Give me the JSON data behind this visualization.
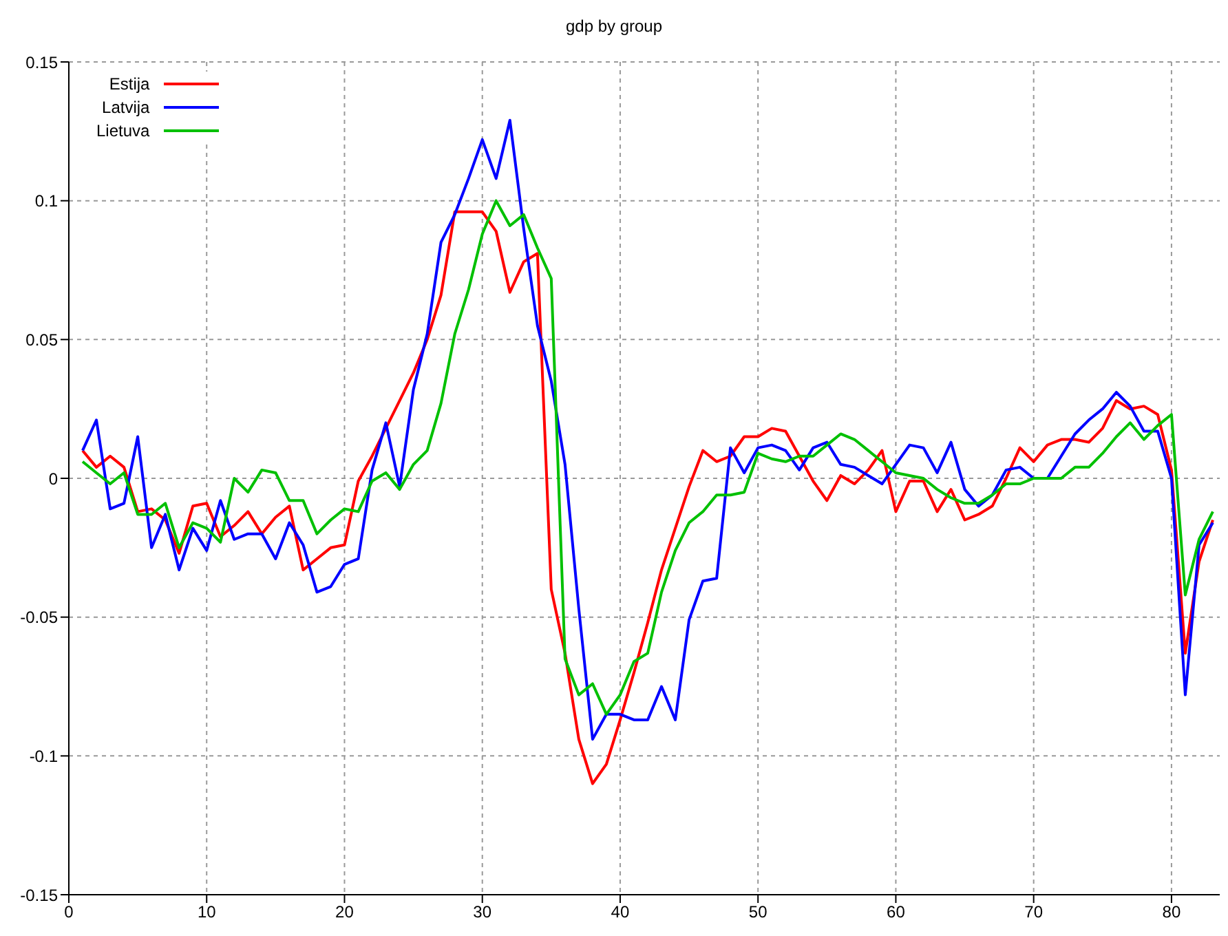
{
  "chart_data": {
    "type": "line",
    "title": "gdp by group",
    "x": [
      1,
      2,
      3,
      4,
      5,
      6,
      7,
      8,
      9,
      10,
      11,
      12,
      13,
      14,
      15,
      16,
      17,
      18,
      19,
      20,
      21,
      22,
      23,
      24,
      25,
      26,
      27,
      28,
      29,
      30,
      31,
      32,
      33,
      34,
      35,
      36,
      37,
      38,
      39,
      40,
      41,
      42,
      43,
      44,
      45,
      46,
      47,
      48,
      49,
      50,
      51,
      52,
      53,
      54,
      55,
      56,
      57,
      58,
      59,
      60,
      61,
      62,
      63,
      64,
      65,
      66,
      67,
      68,
      69,
      70,
      71,
      72,
      73,
      74,
      75,
      76,
      77,
      78,
      79,
      80,
      81,
      82,
      83
    ],
    "series": [
      {
        "name": "Estija",
        "color": "#ff0000",
        "values": [
          0.01,
          0.004,
          0.008,
          0.004,
          -0.012,
          -0.011,
          -0.015,
          -0.027,
          -0.01,
          -0.009,
          -0.021,
          -0.017,
          -0.012,
          -0.02,
          -0.014,
          -0.01,
          -0.033,
          -0.029,
          -0.025,
          -0.024,
          -0.001,
          0.008,
          0.018,
          0.028,
          0.038,
          0.05,
          0.066,
          0.096,
          0.096,
          0.096,
          0.089,
          0.067,
          0.078,
          0.081,
          -0.04,
          -0.063,
          -0.094,
          -0.11,
          -0.103,
          -0.087,
          -0.07,
          -0.052,
          -0.033,
          -0.018,
          -0.003,
          0.01,
          0.006,
          0.008,
          0.015,
          0.015,
          0.018,
          0.017,
          0.008,
          -0.001,
          -0.008,
          0.001,
          -0.002,
          0.003,
          0.01,
          -0.012,
          -0.001,
          -0.001,
          -0.012,
          -0.004,
          -0.015,
          -0.013,
          -0.01,
          0.0,
          0.011,
          0.006,
          0.012,
          0.014,
          0.014,
          0.013,
          0.018,
          0.028,
          0.025,
          0.026,
          0.023,
          0.003,
          -0.063,
          -0.03,
          -0.015
        ]
      },
      {
        "name": "Latvija",
        "color": "#0000ff",
        "values": [
          0.01,
          0.021,
          -0.011,
          -0.009,
          0.015,
          -0.025,
          -0.013,
          -0.033,
          -0.018,
          -0.026,
          -0.008,
          -0.022,
          -0.02,
          -0.02,
          -0.029,
          -0.016,
          -0.024,
          -0.041,
          -0.039,
          -0.031,
          -0.029,
          0.003,
          0.02,
          -0.003,
          0.032,
          0.052,
          0.085,
          0.095,
          0.108,
          0.122,
          0.108,
          0.129,
          0.09,
          0.055,
          0.035,
          0.005,
          -0.047,
          -0.094,
          -0.085,
          -0.085,
          -0.087,
          -0.087,
          -0.075,
          -0.087,
          -0.051,
          -0.037,
          -0.036,
          0.011,
          0.002,
          0.011,
          0.012,
          0.01,
          0.003,
          0.011,
          0.013,
          0.005,
          0.004,
          0.001,
          -0.002,
          0.005,
          0.012,
          0.011,
          0.002,
          0.013,
          -0.004,
          -0.01,
          -0.006,
          0.003,
          0.004,
          0.0,
          0.0,
          0.008,
          0.016,
          0.021,
          0.025,
          0.031,
          0.026,
          0.017,
          0.017,
          0.0,
          -0.078,
          -0.024,
          -0.016
        ]
      },
      {
        "name": "Lietuva",
        "color": "#00c000",
        "values": [
          0.006,
          0.002,
          -0.002,
          0.002,
          -0.013,
          -0.013,
          -0.009,
          -0.025,
          -0.016,
          -0.018,
          -0.023,
          0.0,
          -0.005,
          0.003,
          0.002,
          -0.008,
          -0.008,
          -0.02,
          -0.015,
          -0.011,
          -0.012,
          -0.001,
          0.002,
          -0.004,
          0.005,
          0.01,
          0.027,
          0.052,
          0.068,
          0.088,
          0.1,
          0.091,
          0.095,
          0.083,
          0.072,
          -0.065,
          -0.078,
          -0.074,
          -0.085,
          -0.078,
          -0.066,
          -0.063,
          -0.041,
          -0.026,
          -0.016,
          -0.012,
          -0.006,
          -0.006,
          -0.005,
          0.009,
          0.007,
          0.006,
          0.008,
          0.008,
          0.012,
          0.016,
          0.014,
          0.01,
          0.006,
          0.002,
          0.001,
          0.0,
          -0.004,
          -0.007,
          -0.009,
          -0.009,
          -0.006,
          -0.002,
          -0.002,
          0.0,
          0.0,
          0.0,
          0.004,
          0.004,
          0.009,
          0.015,
          0.02,
          0.014,
          0.019,
          0.023,
          -0.042,
          -0.022,
          -0.012
        ]
      }
    ],
    "xlim": [
      0,
      83.5
    ],
    "xticks": [
      0,
      10,
      20,
      30,
      40,
      50,
      60,
      70,
      80
    ],
    "ylim": [
      -0.15,
      0.15
    ],
    "yticks": [
      -0.15,
      -0.1,
      -0.05,
      0,
      0.05,
      0.1,
      0.15
    ],
    "grid": true,
    "legend": "top left",
    "marker": "none",
    "line_style": "solid"
  }
}
